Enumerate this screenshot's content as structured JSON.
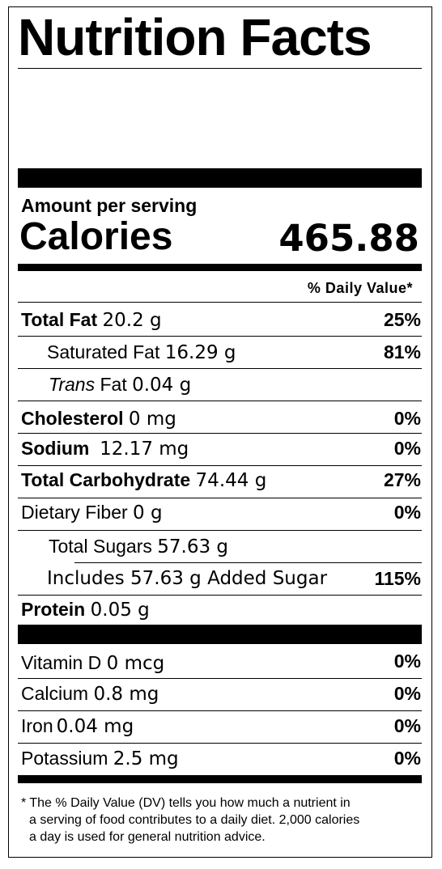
{
  "header": {
    "title": "Nutrition Facts"
  },
  "calories": {
    "amount_label": "Amount per serving",
    "label": "Calories",
    "value": "465.88"
  },
  "dv_header": "% Daily Value*",
  "nutrients": {
    "total_fat": {
      "name": "Total Fat",
      "amount": "20.2 g",
      "dv": "25%"
    },
    "saturated_fat": {
      "name": "Saturated Fat",
      "amount": "16.29 g",
      "dv": "81%"
    },
    "trans_fat": {
      "name_italic": "Trans",
      "name_rest": " Fat",
      "amount": "0.04 g"
    },
    "cholesterol": {
      "name": "Cholesterol",
      "amount": "0 mg",
      "dv": "0%"
    },
    "sodium": {
      "name": "Sodium",
      "amount": "12.17 mg",
      "dv": "0%"
    },
    "total_carbohydrate": {
      "name": "Total Carbohydrate",
      "amount": "74.44 g",
      "dv": "27%"
    },
    "dietary_fiber": {
      "name": "Dietary Fiber",
      "amount": "0 g",
      "dv": "0%"
    },
    "total_sugars": {
      "name": "Total Sugars",
      "amount": "57.63 g"
    },
    "added_sugar": {
      "prefix": "Includes",
      "amount": "57.63 g",
      "suffix": "Added Sugar",
      "dv": "115%"
    },
    "protein": {
      "name": "Protein",
      "amount": "0.05 g"
    }
  },
  "vitamins": {
    "vitamin_d": {
      "name": "Vitamin D",
      "amount": "0 mcg",
      "dv": "0%"
    },
    "calcium": {
      "name": "Calcium",
      "amount": "0.8 mg",
      "dv": "0%"
    },
    "iron": {
      "name": "Iron",
      "amount": "0.04 mg",
      "dv": "0%"
    },
    "potassium": {
      "name": "Potassium",
      "amount": "2.5 mg",
      "dv": "0%"
    }
  },
  "footnote": {
    "line1": "* The % Daily Value (DV) tells you how much a nutrient in",
    "line2": "a serving of food contributes to a daily diet. 2,000 calories",
    "line3": "a day is used for general nutrition advice."
  }
}
